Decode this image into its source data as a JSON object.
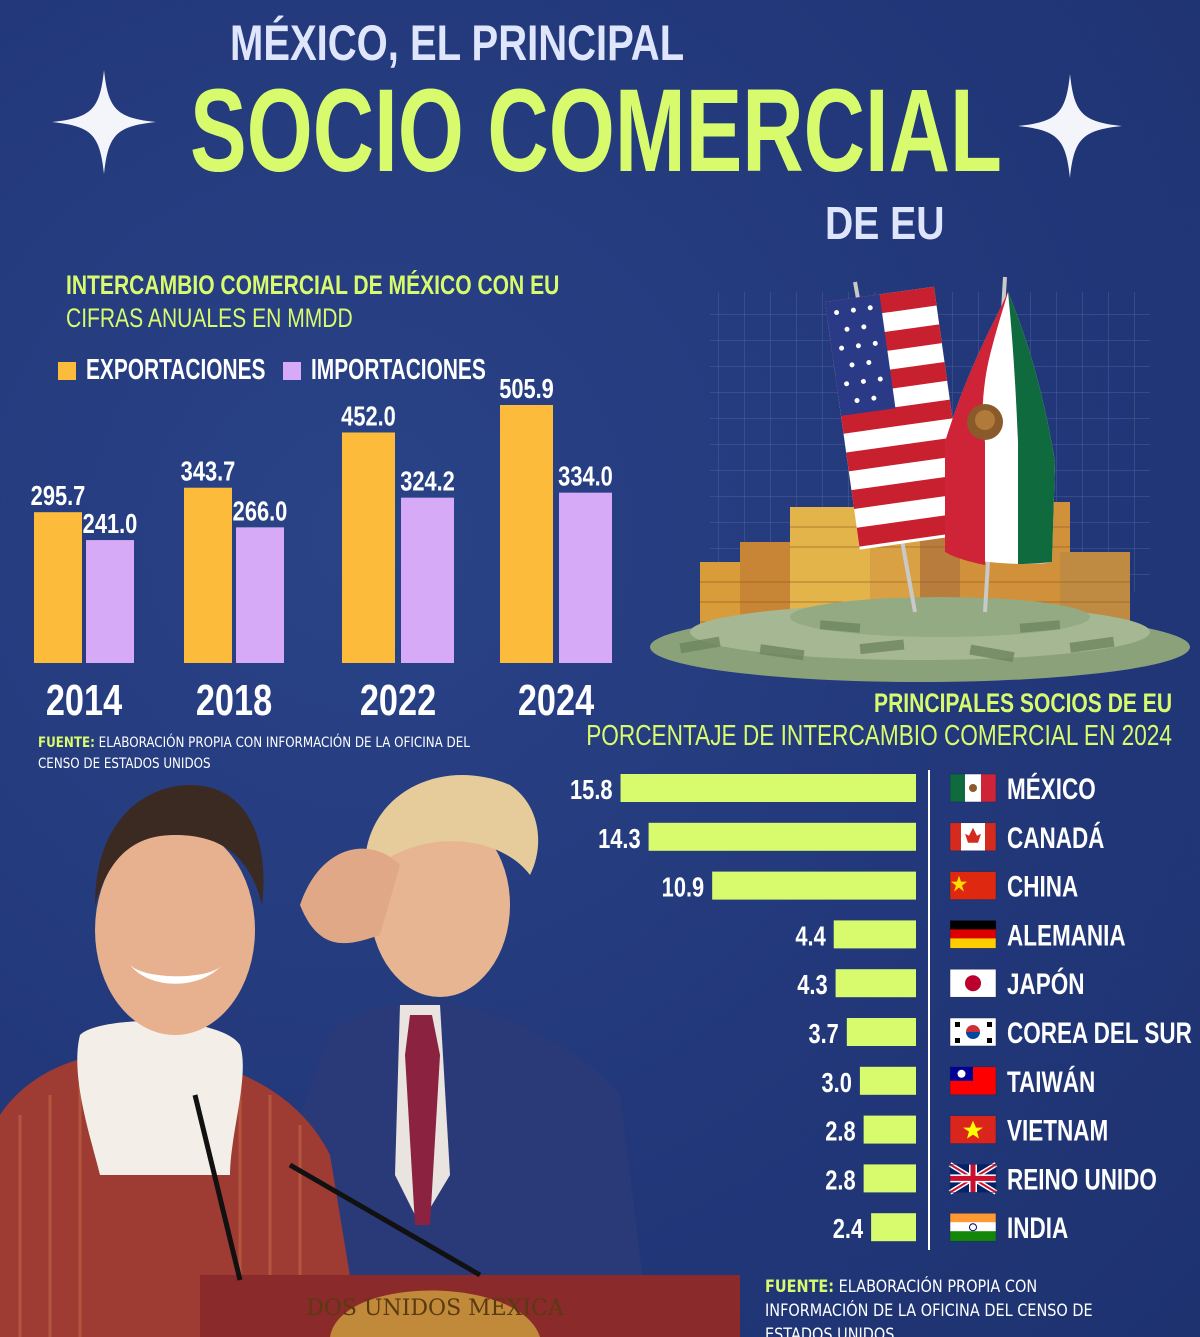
{
  "header": {
    "line1": "MÉXICO, EL PRINCIPAL",
    "line2": "SOCIO COMERCIAL",
    "line3": "DE EU"
  },
  "colors": {
    "background": "#23397a",
    "accent": "#d8fb6e",
    "exports": "#fdbb3b",
    "imports": "#d7aaf7",
    "title_light": "#dfe6fb"
  },
  "section1": {
    "title": "INTERCAMBIO COMERCIAL DE MÉXICO CON EU",
    "subtitle": "CIFRAS ANUALES EN MMDD",
    "legend": [
      {
        "label": "EXPORTACIONES",
        "color": "#fdbb3b"
      },
      {
        "label": "IMPORTACIONES",
        "color": "#d7aaf7"
      }
    ],
    "source_label": "FUENTE:",
    "source_text": "ELABORACIÓN PROPIA CON INFORMACIÓN DE LA OFICINA DEL CENSO DE ESTADOS UNIDOS"
  },
  "section2": {
    "title": "PRINCIPALES SOCIOS DE EU",
    "subtitle": "PORCENTAJE DE INTERCAMBIO COMERCIAL EN 2024",
    "source_label": "FUENTE:",
    "source_text": "ELABORACIÓN PROPIA CON INFORMACIÓN DE LA OFICINA DEL CENSO DE ESTADOS UNIDOS"
  },
  "podium_text": "DOS UNIDOS MEXICA",
  "chart_data": [
    {
      "type": "bar",
      "title": "INTERCAMBIO COMERCIAL DE MÉXICO CON EU",
      "subtitle": "CIFRAS ANUALES EN MMDD",
      "categories": [
        "2014",
        "2018",
        "2022",
        "2024"
      ],
      "series": [
        {
          "name": "EXPORTACIONES",
          "values": [
            295.7,
            343.7,
            452.0,
            505.9
          ]
        },
        {
          "name": "IMPORTACIONES",
          "values": [
            241.0,
            266.0,
            324.2,
            334.0
          ]
        }
      ],
      "data_labels": [
        [
          "295.7",
          "343.7",
          "452.0",
          "505.9"
        ],
        [
          "241.0",
          "266.0",
          "324.2",
          "334.0"
        ]
      ],
      "ylim": [
        0,
        560
      ],
      "grid": false,
      "legend": "top-left"
    },
    {
      "type": "bar",
      "orientation": "horizontal",
      "title": "PRINCIPALES SOCIOS DE EU",
      "subtitle": "PORCENTAJE DE INTERCAMBIO COMERCIAL EN 2024",
      "categories": [
        "MÉXICO",
        "CANADÁ",
        "CHINA",
        "ALEMANIA",
        "JAPÓN",
        "COREA DEL SUR",
        "TAIWÁN",
        "VIETNAM",
        "REINO UNIDO",
        "INDIA"
      ],
      "values": [
        15.8,
        14.3,
        10.9,
        4.4,
        4.3,
        3.7,
        3.0,
        2.8,
        2.8,
        2.4
      ],
      "labels": [
        "15.8",
        "14.3",
        "10.9",
        "4.4",
        "4.3",
        "3.7",
        "3.0",
        "2.8",
        "2.8",
        "2.4"
      ],
      "flags": [
        "mexico-flag-icon",
        "canada-flag-icon",
        "china-flag-icon",
        "germany-flag-icon",
        "japan-flag-icon",
        "south-korea-flag-icon",
        "taiwan-flag-icon",
        "vietnam-flag-icon",
        "uk-flag-icon",
        "india-flag-icon"
      ],
      "grid": false
    }
  ]
}
